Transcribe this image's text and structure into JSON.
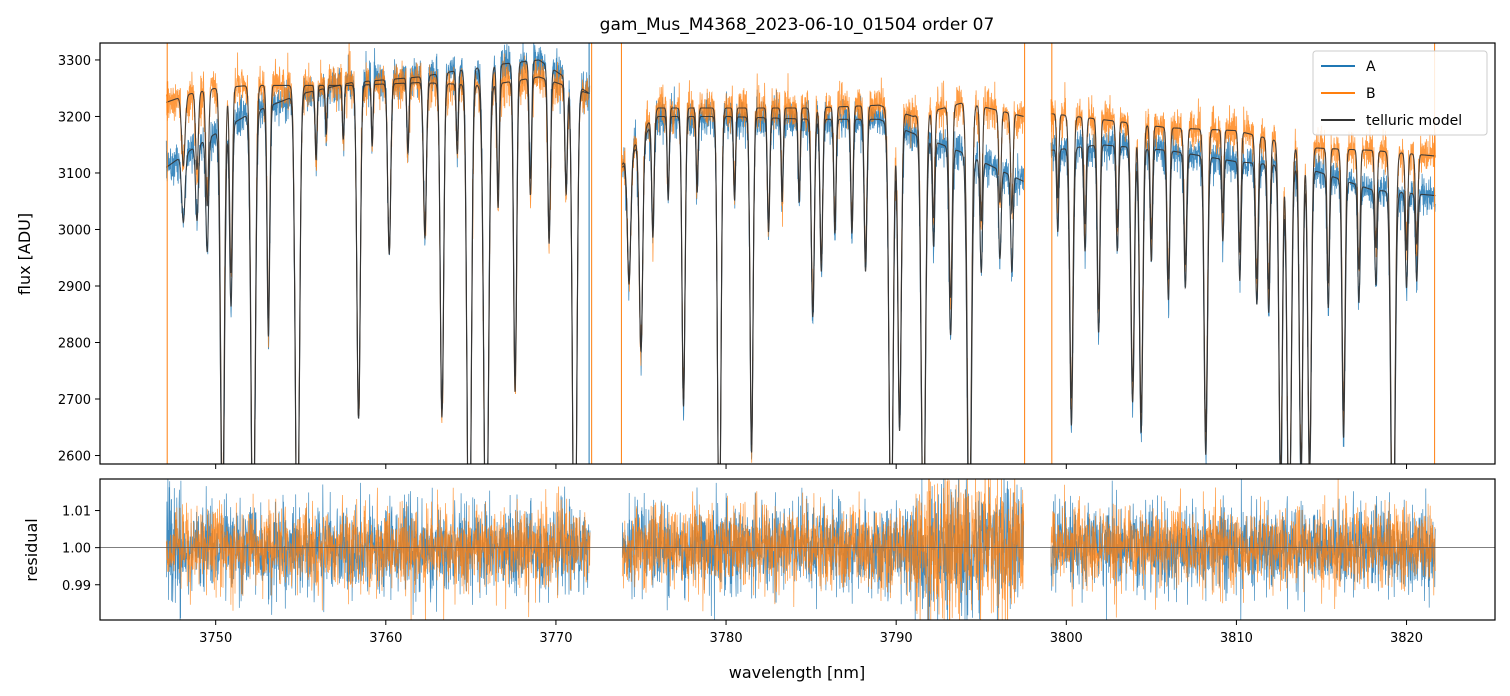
{
  "title": "gam_Mus_M4368_2023-06-10_01504  order 07",
  "colors": {
    "A": "#1f77b4",
    "B": "#ff7f0e",
    "model": "#333333"
  },
  "legend": {
    "position": "top-right",
    "entries": [
      {
        "key": "A",
        "label": "A"
      },
      {
        "key": "B",
        "label": "B"
      },
      {
        "key": "model",
        "label": "telluric model"
      }
    ]
  },
  "chart_data": [
    {
      "type": "line",
      "name": "flux",
      "xlabel": "",
      "ylabel": "flux [ADU]",
      "xlim": [
        3743.2,
        3825.2
      ],
      "ylim": [
        2585,
        3330
      ],
      "yticks": [
        2600,
        2700,
        2800,
        2900,
        3000,
        3100,
        3200,
        3300
      ],
      "grid": false,
      "segments": [
        [
          3747.1,
          3772.0
        ],
        [
          3773.9,
          3797.5
        ],
        [
          3799.1,
          3821.7
        ]
      ],
      "continuum": {
        "A": [
          [
            3747.1,
            3110
          ],
          [
            3748.5,
            3140
          ],
          [
            3750,
            3170
          ],
          [
            3752,
            3205
          ],
          [
            3755,
            3240
          ],
          [
            3758,
            3260
          ],
          [
            3762,
            3270
          ],
          [
            3766,
            3290
          ],
          [
            3769,
            3300
          ],
          [
            3772,
            3240
          ],
          [
            3773.9,
            3110
          ],
          [
            3776,
            3200
          ],
          [
            3780,
            3200
          ],
          [
            3785,
            3195
          ],
          [
            3789,
            3195
          ],
          [
            3791,
            3170
          ],
          [
            3794,
            3135
          ],
          [
            3797.5,
            3085
          ],
          [
            3799.1,
            3140
          ],
          [
            3802,
            3150
          ],
          [
            3806,
            3140
          ],
          [
            3810,
            3120
          ],
          [
            3814,
            3110
          ],
          [
            3818,
            3070
          ],
          [
            3821.7,
            3060
          ]
        ],
        "B": [
          [
            3747.1,
            3225
          ],
          [
            3748.5,
            3240
          ],
          [
            3750,
            3250
          ],
          [
            3752,
            3255
          ],
          [
            3755,
            3255
          ],
          [
            3758,
            3255
          ],
          [
            3762,
            3260
          ],
          [
            3766,
            3255
          ],
          [
            3769,
            3270
          ],
          [
            3772,
            3240
          ],
          [
            3773.9,
            3115
          ],
          [
            3776,
            3215
          ],
          [
            3780,
            3215
          ],
          [
            3785,
            3215
          ],
          [
            3789,
            3220
          ],
          [
            3791,
            3200
          ],
          [
            3794,
            3225
          ],
          [
            3797.5,
            3200
          ],
          [
            3799.1,
            3205
          ],
          [
            3802,
            3195
          ],
          [
            3806,
            3180
          ],
          [
            3810,
            3175
          ],
          [
            3814,
            3145
          ],
          [
            3818,
            3140
          ],
          [
            3821.7,
            3130
          ]
        ]
      },
      "absorption_lines": [
        [
          3748.1,
          90,
          0.1
        ],
        [
          3748.9,
          100,
          0.08
        ],
        [
          3749.5,
          150,
          0.08
        ],
        [
          3750.4,
          560,
          0.11
        ],
        [
          3750.9,
          240,
          0.08
        ],
        [
          3752.2,
          620,
          0.12
        ],
        [
          3753.1,
          300,
          0.08
        ],
        [
          3754.8,
          620,
          0.12
        ],
        [
          3755.9,
          90,
          0.06
        ],
        [
          3756.5,
          60,
          0.05
        ],
        [
          3757.5,
          70,
          0.05
        ],
        [
          3758.4,
          430,
          0.1
        ],
        [
          3759.2,
          80,
          0.05
        ],
        [
          3760.2,
          220,
          0.09
        ],
        [
          3761.3,
          90,
          0.06
        ],
        [
          3762.3,
          200,
          0.09
        ],
        [
          3763.3,
          430,
          0.1
        ],
        [
          3764.2,
          90,
          0.06
        ],
        [
          3764.9,
          700,
          0.12
        ],
        [
          3765.9,
          640,
          0.14
        ],
        [
          3766.6,
          160,
          0.07
        ],
        [
          3767.6,
          400,
          0.09
        ],
        [
          3768.5,
          150,
          0.07
        ],
        [
          3769.6,
          210,
          0.08
        ],
        [
          3770.6,
          140,
          0.07
        ],
        [
          3771.1,
          700,
          0.12
        ],
        [
          3774.3,
          170,
          0.1
        ],
        [
          3775.0,
          280,
          0.1
        ],
        [
          3775.7,
          150,
          0.07
        ],
        [
          3776.6,
          110,
          0.06
        ],
        [
          3777.5,
          380,
          0.09
        ],
        [
          3778.3,
          100,
          0.06
        ],
        [
          3779.6,
          570,
          0.1
        ],
        [
          3780.5,
          110,
          0.06
        ],
        [
          3781.5,
          440,
          0.09
        ],
        [
          3782.5,
          150,
          0.07
        ],
        [
          3783.3,
          110,
          0.06
        ],
        [
          3784.3,
          110,
          0.06
        ],
        [
          3785.1,
          260,
          0.09
        ],
        [
          3785.6,
          200,
          0.08
        ],
        [
          3786.4,
          150,
          0.07
        ],
        [
          3787.4,
          150,
          0.07
        ],
        [
          3788.2,
          200,
          0.08
        ],
        [
          3789.7,
          560,
          0.12
        ],
        [
          3790.2,
          400,
          0.1
        ],
        [
          3791.6,
          560,
          0.12
        ],
        [
          3792.2,
          140,
          0.07
        ],
        [
          3793.2,
          250,
          0.09
        ],
        [
          3794.3,
          560,
          0.12
        ],
        [
          3795.0,
          150,
          0.07
        ],
        [
          3796.1,
          120,
          0.07
        ],
        [
          3796.8,
          130,
          0.07
        ],
        [
          3799.5,
          110,
          0.06
        ],
        [
          3800.3,
          370,
          0.1
        ],
        [
          3801.1,
          140,
          0.07
        ],
        [
          3801.9,
          250,
          0.08
        ],
        [
          3803.0,
          140,
          0.07
        ],
        [
          3803.9,
          340,
          0.1
        ],
        [
          3804.4,
          380,
          0.1
        ],
        [
          3805.0,
          150,
          0.07
        ],
        [
          3806.0,
          200,
          0.08
        ],
        [
          3807.0,
          180,
          0.08
        ],
        [
          3808.2,
          400,
          0.1
        ],
        [
          3809.2,
          110,
          0.06
        ],
        [
          3810.2,
          160,
          0.07
        ],
        [
          3811.2,
          190,
          0.08
        ],
        [
          3811.9,
          200,
          0.08
        ],
        [
          3812.6,
          440,
          0.1
        ],
        [
          3813.1,
          520,
          0.12
        ],
        [
          3813.8,
          420,
          0.1
        ],
        [
          3814.3,
          420,
          0.1
        ],
        [
          3815.4,
          180,
          0.07
        ],
        [
          3816.3,
          350,
          0.09
        ],
        [
          3817.2,
          160,
          0.07
        ],
        [
          3818.2,
          130,
          0.07
        ],
        [
          3819.2,
          560,
          0.12
        ],
        [
          3820.0,
          130,
          0.07
        ],
        [
          3820.6,
          120,
          0.07
        ]
      ],
      "noise_rms": {
        "A": 22,
        "B": 24
      },
      "spikes": [
        [
          3747.15,
          "B"
        ],
        [
          3771.95,
          "A"
        ],
        [
          3772.1,
          "B"
        ],
        [
          3773.85,
          "B"
        ],
        [
          3797.55,
          "B"
        ],
        [
          3799.15,
          "B"
        ],
        [
          3821.65,
          "B"
        ]
      ]
    },
    {
      "type": "line",
      "name": "residual",
      "xlabel": "wavelength [nm]",
      "ylabel": "residual",
      "xlim": [
        3743.2,
        3825.2
      ],
      "ylim": [
        0.9805,
        1.0185
      ],
      "yticks": [
        0.99,
        1.0,
        1.01
      ],
      "ytick_labels": [
        "0.99",
        "1.00",
        "1.01"
      ],
      "xticks": [
        3750,
        3760,
        3770,
        3780,
        3790,
        3800,
        3810,
        3820
      ],
      "reference_line": 1.0,
      "grid": false,
      "noise_rms": {
        "A": 0.0058,
        "B": 0.0055
      },
      "segments": [
        [
          3747.1,
          3772.0
        ],
        [
          3773.9,
          3797.5
        ],
        [
          3799.1,
          3821.7
        ]
      ]
    }
  ]
}
